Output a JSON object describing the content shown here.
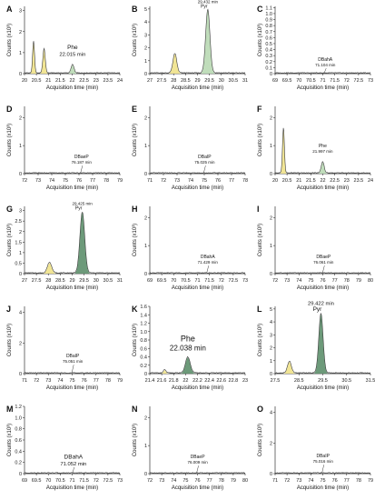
{
  "figure": {
    "background": "#ffffff",
    "panel_rows": 5,
    "panel_cols": 3
  },
  "colors": {
    "trace": "#3a3a3a",
    "fill_yellow": "#f0e28a",
    "fill_green": "#b9d9b4",
    "fill_darkgreen": "#5d8f6c",
    "axis": "#333333"
  },
  "chart_data": [
    {
      "letter": "A",
      "type": "line",
      "xlabel": "Acquisition time (min)",
      "ylabel": "Counts (x10³)",
      "xlim": [
        20,
        24
      ],
      "xticks": [
        "20",
        "20.5",
        "21",
        "21.5",
        "22",
        "22.5",
        "23",
        "23.5",
        "24"
      ],
      "ylim": [
        0,
        3.2
      ],
      "yticks": [
        "0",
        "1",
        "2",
        "3"
      ],
      "peaks": [
        {
          "x": 20.38,
          "h": 1.5,
          "w": 0.04,
          "color": "yellow"
        },
        {
          "x": 20.82,
          "h": 1.15,
          "w": 0.05,
          "color": "yellow"
        },
        {
          "x": 22.015,
          "h": 0.4,
          "w": 0.06,
          "color": "green"
        }
      ],
      "annotation": {
        "name": "Phe",
        "time": "22.015 min",
        "x": 22.015,
        "y": 0.85,
        "size": "medium"
      }
    },
    {
      "letter": "B",
      "type": "line",
      "xlabel": "Acquisition time (min)",
      "ylabel": "Counts (x10³)",
      "xlim": [
        27,
        31
      ],
      "xticks": [
        "27",
        "27.5",
        "28",
        "28.5",
        "29",
        "29.5",
        "30",
        "30.5",
        "31"
      ],
      "ylim": [
        0,
        5.2
      ],
      "yticks": [
        "0",
        "1",
        "2",
        "3",
        "4",
        "5"
      ],
      "peaks": [
        {
          "x": 28.05,
          "h": 1.5,
          "w": 0.08,
          "color": "yellow"
        },
        {
          "x": 29.432,
          "h": 4.9,
          "w": 0.09,
          "color": "green"
        }
      ],
      "annotation": {
        "name": "Pyr",
        "time": "29.432 min",
        "x": 29.432,
        "y": 5.1,
        "size": "small"
      }
    },
    {
      "letter": "C",
      "type": "line",
      "xlabel": "Acquisition time (min)",
      "ylabel": "Counts (x10³)",
      "xlim": [
        69,
        73
      ],
      "xticks": [
        "69",
        "69.5",
        "70",
        "70.5",
        "71",
        "71.5",
        "72",
        "72.5",
        "73"
      ],
      "ylim": [
        0,
        1.12
      ],
      "yticks": [
        "0",
        "0.1",
        "0.2",
        "0.3",
        "0.4",
        "0.5",
        "0.6",
        "0.7",
        "0.8",
        "0.9",
        "1.0",
        "1.1"
      ],
      "peaks": [],
      "annotation": {
        "name": "DBahA",
        "time": "71.104 min",
        "x": 71.104,
        "y": 0.12,
        "size": "small"
      }
    },
    {
      "letter": "D",
      "type": "line",
      "xlabel": "Acquisition time (min)",
      "ylabel": "Counts (x10³)",
      "xlim": [
        72,
        79
      ],
      "xticks": [
        "72",
        "73",
        "74",
        "75",
        "76",
        "77",
        "78",
        "79"
      ],
      "ylim": [
        0,
        2.4
      ],
      "yticks": [
        "0",
        "1",
        "2"
      ],
      "peaks": [],
      "annotation": {
        "name": "DBaeP",
        "time": "76.187 min",
        "x": 76.187,
        "y": 0.35,
        "size": "small"
      }
    },
    {
      "letter": "E",
      "type": "line",
      "xlabel": "Acquisition time (min)",
      "ylabel": "Counts (x10³)",
      "xlim": [
        71,
        78
      ],
      "xticks": [
        "71",
        "72",
        "73",
        "74",
        "75",
        "76",
        "77",
        "78"
      ],
      "ylim": [
        0,
        2.4
      ],
      "yticks": [
        "0",
        "1",
        "2"
      ],
      "peaks": [],
      "annotation": {
        "name": "DBaIP",
        "time": "75.025 min",
        "x": 75.025,
        "y": 0.35,
        "size": "small"
      }
    },
    {
      "letter": "F",
      "type": "line",
      "xlabel": "Acquisition time (min)",
      "ylabel": "Counts (x10³)",
      "xlim": [
        20,
        24
      ],
      "xticks": [
        "20",
        "20.5",
        "21",
        "21.5",
        "22",
        "22.5",
        "23",
        "23.5",
        "24"
      ],
      "ylim": [
        0,
        2.4
      ],
      "yticks": [
        "0",
        "1",
        "2"
      ],
      "peaks": [
        {
          "x": 20.35,
          "h": 1.6,
          "w": 0.04,
          "color": "yellow"
        },
        {
          "x": 21.997,
          "h": 0.4,
          "w": 0.06,
          "color": "green"
        }
      ],
      "annotation": {
        "name": "Phe",
        "time": "21.997 min",
        "x": 21.997,
        "y": 0.75,
        "size": "small"
      }
    },
    {
      "letter": "G",
      "type": "line",
      "xlabel": "Acquisition time (min)",
      "ylabel": "Counts (x10³)",
      "xlim": [
        27,
        31
      ],
      "xticks": [
        "27",
        "27.5",
        "28",
        "28.5",
        "29",
        "29.5",
        "30",
        "30.5",
        "31"
      ],
      "ylim": [
        0,
        3.2
      ],
      "yticks": [
        "0",
        "0.5",
        "1",
        "1.5",
        "2",
        "2.5",
        "3"
      ],
      "peaks": [
        {
          "x": 28.05,
          "h": 0.5,
          "w": 0.09,
          "color": "yellow"
        },
        {
          "x": 29.425,
          "h": 2.9,
          "w": 0.1,
          "color": "darkgreen"
        }
      ],
      "annotation": {
        "name": "Pyr",
        "time": "29.425 min",
        "x": 29.425,
        "y": 3.05,
        "size": "small"
      }
    },
    {
      "letter": "H",
      "type": "line",
      "xlabel": "Acquisition time (min)",
      "ylabel": "Counts (x10³)",
      "xlim": [
        69,
        73
      ],
      "xticks": [
        "69",
        "69.5",
        "70",
        "70.5",
        "71",
        "71.5",
        "72",
        "72.5",
        "73"
      ],
      "ylim": [
        0,
        2.4
      ],
      "yticks": [
        "0",
        "1",
        "2"
      ],
      "peaks": [],
      "annotation": {
        "name": "DBahA",
        "time": "71.429 min",
        "x": 71.429,
        "y": 0.35,
        "size": "small"
      }
    },
    {
      "letter": "I",
      "type": "line",
      "xlabel": "Acquisition time (min)",
      "ylabel": "Counts (x10³)",
      "xlim": [
        72,
        80
      ],
      "xticks": [
        "72",
        "73",
        "74",
        "75",
        "76",
        "77",
        "78",
        "79",
        "80"
      ],
      "ylim": [
        0,
        2.4
      ],
      "yticks": [
        "0",
        "1",
        "2"
      ],
      "peaks": [],
      "annotation": {
        "name": "DBaeP",
        "time": "76.061 min",
        "x": 76.061,
        "y": 0.35,
        "size": "small"
      }
    },
    {
      "letter": "J",
      "type": "line",
      "xlabel": "Acquisition time (min)",
      "ylabel": "Counts (x10³)",
      "xlim": [
        71,
        79
      ],
      "xticks": [
        "71",
        "72",
        "73",
        "74",
        "75",
        "76",
        "77",
        "78",
        "79"
      ],
      "ylim": [
        0,
        4.4
      ],
      "yticks": [
        "0",
        "2",
        "4"
      ],
      "peaks": [],
      "annotation": {
        "name": "DBaIP",
        "time": "75.051 min",
        "x": 75.051,
        "y": 0.7,
        "size": "small"
      }
    },
    {
      "letter": "K",
      "type": "line",
      "xlabel": "Acquisition time (min)",
      "ylabel": "Counts (x10³)",
      "xlim": [
        21.4,
        23
      ],
      "xticks": [
        "21.4",
        "21.6",
        "21.8",
        "22",
        "22.2",
        "22.4",
        "22.6",
        "22.8",
        "23"
      ],
      "ylim": [
        0,
        1.6
      ],
      "yticks": [
        "0",
        "0.2",
        "0.4",
        "0.6",
        "0.8",
        "1.0",
        "1.2",
        "1.4",
        "1.6"
      ],
      "peaks": [
        {
          "x": 21.65,
          "h": 0.08,
          "w": 0.02,
          "color": "yellow"
        },
        {
          "x": 22.038,
          "h": 0.38,
          "w": 0.04,
          "color": "darkgreen"
        }
      ],
      "annotation": {
        "name": "Phe",
        "time": "22.038 min",
        "x": 22.038,
        "y": 0.55,
        "size": "large"
      }
    },
    {
      "letter": "L",
      "type": "line",
      "xlabel": "Acquisition time (min)",
      "ylabel": "Counts (x10³)",
      "xlim": [
        27.5,
        31.5
      ],
      "xticks": [
        "27.5",
        "28.5",
        "29.5",
        "30.5",
        "31.5"
      ],
      "ylim": [
        0,
        5.2
      ],
      "yticks": [
        "0",
        "1",
        "2",
        "3",
        "4",
        "5"
      ],
      "peaks": [
        {
          "x": 28.1,
          "h": 0.9,
          "w": 0.08,
          "color": "yellow"
        },
        {
          "x": 29.422,
          "h": 4.6,
          "w": 0.09,
          "color": "darkgreen"
        }
      ],
      "annotation": {
        "name": "Pyr",
        "time": "29.422 min",
        "x": 29.422,
        "y": 4.85,
        "size": "medium"
      }
    },
    {
      "letter": "M",
      "type": "line",
      "xlabel": "Acquisition time (min)",
      "ylabel": "Counts (x10³)",
      "xlim": [
        69,
        73
      ],
      "xticks": [
        "69",
        "69.5",
        "70",
        "70.5",
        "71",
        "71.5",
        "72",
        "72.5",
        "73"
      ],
      "ylim": [
        0,
        1.2
      ],
      "yticks": [
        "0",
        "0.2",
        "0.4",
        "0.6",
        "0.8",
        "1.0",
        "1.2"
      ],
      "peaks": [],
      "annotation": {
        "name": "DBahA",
        "time": "71.052 min",
        "x": 71.052,
        "y": 0.15,
        "size": "medium"
      }
    },
    {
      "letter": "N",
      "type": "line",
      "xlabel": "Acquisition time (min)",
      "ylabel": "Counts (x10³)",
      "xlim": [
        72,
        80
      ],
      "xticks": [
        "72",
        "73",
        "74",
        "75",
        "76",
        "77",
        "78",
        "79",
        "80"
      ],
      "ylim": [
        0,
        2.4
      ],
      "yticks": [
        "0",
        "1",
        "2"
      ],
      "peaks": [],
      "annotation": {
        "name": "DBaeP",
        "time": "76.009 min",
        "x": 76.009,
        "y": 0.35,
        "size": "small"
      }
    },
    {
      "letter": "O",
      "type": "line",
      "xlabel": "Acquisition time (min)",
      "ylabel": "Counts (x10³)",
      "xlim": [
        71,
        79
      ],
      "xticks": [
        "71",
        "72",
        "73",
        "74",
        "75",
        "76",
        "77",
        "78",
        "79"
      ],
      "ylim": [
        0,
        4.4
      ],
      "yticks": [
        "0",
        "2",
        "4"
      ],
      "peaks": [],
      "annotation": {
        "name": "DBaIP",
        "time": "75.016 min",
        "x": 75.016,
        "y": 0.7,
        "size": "small"
      }
    }
  ]
}
